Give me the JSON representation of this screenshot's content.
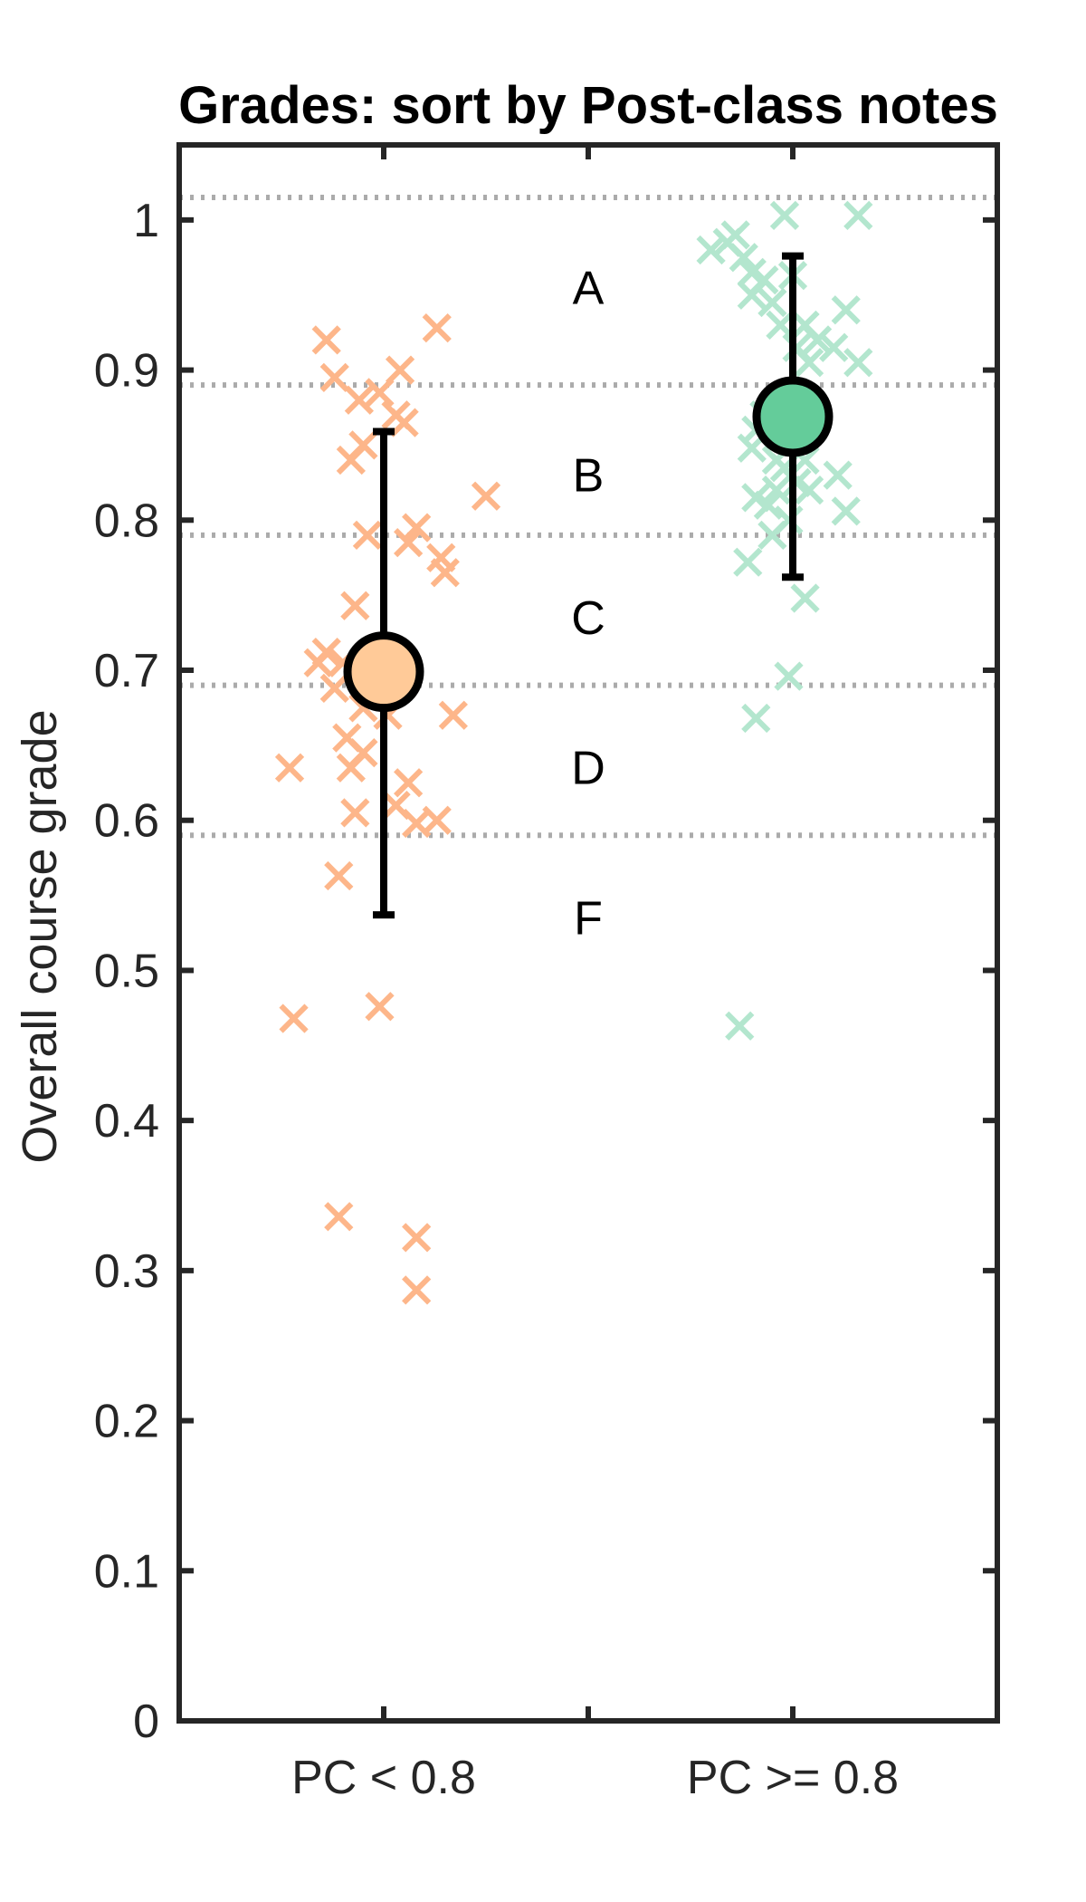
{
  "chart_data": {
    "type": "scatter",
    "title": "Grades: sort by Post-class notes",
    "xlabel": "",
    "ylabel": "Overall course grade",
    "categories": [
      "PC < 0.8",
      "PC >= 0.8"
    ],
    "ylim": [
      0,
      1.05
    ],
    "yticks": [
      "0",
      "0.1",
      "0.2",
      "0.3",
      "0.4",
      "0.5",
      "0.6",
      "0.7",
      "0.8",
      "0.9",
      "1"
    ],
    "grid": false,
    "grade_cutoffs": [
      1.015,
      0.89,
      0.79,
      0.69,
      0.59
    ],
    "grade_bands": [
      {
        "label": "A",
        "y": 0.955
      },
      {
        "label": "B",
        "y": 0.83
      },
      {
        "label": "C",
        "y": 0.735
      },
      {
        "label": "D",
        "y": 0.635
      },
      {
        "label": "F",
        "y": 0.535
      }
    ],
    "series": [
      {
        "category": "PC < 0.8",
        "color": "#FDB68A",
        "mean_color": "#FFCA98",
        "mean": 0.699,
        "err_low": 0.537,
        "err_high": 0.859,
        "points": [
          [
            -0.14,
            0.92
          ],
          [
            -0.12,
            0.895
          ],
          [
            -0.06,
            0.88
          ],
          [
            -0.01,
            0.885
          ],
          [
            0.03,
            0.87
          ],
          [
            0.04,
            0.9
          ],
          [
            0.13,
            0.928
          ],
          [
            -0.05,
            0.85
          ],
          [
            -0.08,
            0.84
          ],
          [
            0.05,
            0.865
          ],
          [
            0.25,
            0.816
          ],
          [
            0.08,
            0.795
          ],
          [
            -0.04,
            0.79
          ],
          [
            0.06,
            0.785
          ],
          [
            0.14,
            0.775
          ],
          [
            0.15,
            0.765
          ],
          [
            -0.07,
            0.743
          ],
          [
            -0.14,
            0.712
          ],
          [
            -0.16,
            0.705
          ],
          [
            -0.1,
            0.705
          ],
          [
            0.02,
            0.71
          ],
          [
            -0.12,
            0.688
          ],
          [
            -0.05,
            0.675
          ],
          [
            0.01,
            0.67
          ],
          [
            0.17,
            0.67
          ],
          [
            -0.09,
            0.655
          ],
          [
            -0.05,
            0.645
          ],
          [
            -0.23,
            0.635
          ],
          [
            -0.08,
            0.635
          ],
          [
            0.06,
            0.625
          ],
          [
            0.03,
            0.61
          ],
          [
            -0.07,
            0.605
          ],
          [
            0.08,
            0.598
          ],
          [
            0.13,
            0.6
          ],
          [
            -0.11,
            0.563
          ],
          [
            -0.22,
            0.468
          ],
          [
            -0.01,
            0.476
          ],
          [
            -0.11,
            0.336
          ],
          [
            0.08,
            0.322
          ],
          [
            0.08,
            0.287
          ]
        ]
      },
      {
        "category": "PC >= 0.8",
        "color": "#B3E6CE",
        "mean_color": "#64CC9A",
        "mean": 0.869,
        "err_low": 0.762,
        "err_high": 0.976,
        "points": [
          [
            -0.02,
            1.003
          ],
          [
            0.16,
            1.003
          ],
          [
            -0.16,
            0.985
          ],
          [
            -0.14,
            0.99
          ],
          [
            -0.2,
            0.98
          ],
          [
            -0.12,
            0.975
          ],
          [
            -0.1,
            0.965
          ],
          [
            -0.07,
            0.96
          ],
          [
            0.0,
            0.963
          ],
          [
            -0.1,
            0.95
          ],
          [
            -0.05,
            0.945
          ],
          [
            -0.03,
            0.93
          ],
          [
            0.03,
            0.93
          ],
          [
            0.13,
            0.94
          ],
          [
            0.06,
            0.92
          ],
          [
            0.01,
            0.915
          ],
          [
            0.1,
            0.915
          ],
          [
            0.04,
            0.905
          ],
          [
            0.16,
            0.905
          ],
          [
            -0.07,
            0.87
          ],
          [
            -0.09,
            0.86
          ],
          [
            -0.1,
            0.848
          ],
          [
            -0.04,
            0.84
          ],
          [
            -0.02,
            0.835
          ],
          [
            0.03,
            0.84
          ],
          [
            0.11,
            0.83
          ],
          [
            -0.04,
            0.82
          ],
          [
            -0.09,
            0.815
          ],
          [
            -0.06,
            0.81
          ],
          [
            0.01,
            0.825
          ],
          [
            0.04,
            0.82
          ],
          [
            0.13,
            0.806
          ],
          [
            -0.01,
            0.8
          ],
          [
            -0.05,
            0.79
          ],
          [
            -0.11,
            0.772
          ],
          [
            0.03,
            0.748
          ],
          [
            -0.01,
            0.696
          ],
          [
            -0.09,
            0.668
          ],
          [
            -0.13,
            0.463
          ]
        ]
      }
    ]
  }
}
